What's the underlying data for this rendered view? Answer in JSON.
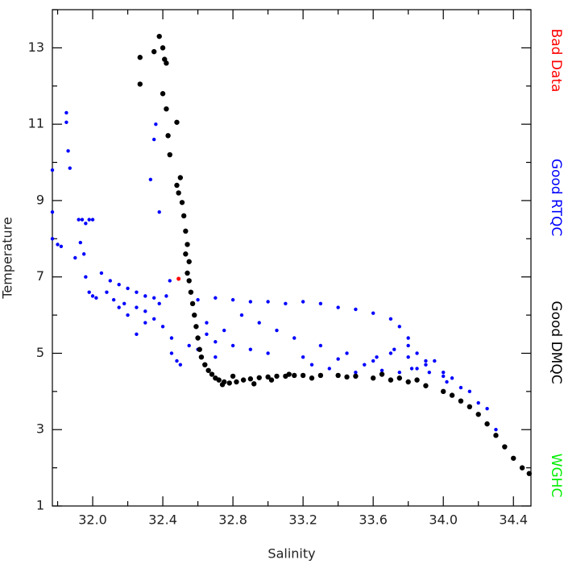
{
  "chart_data": {
    "type": "scatter",
    "x_label": "Salinity",
    "y_label": "Temperature",
    "xlim": [
      31.77,
      34.5
    ],
    "ylim": [
      1,
      14
    ],
    "xticks": [
      {
        "value": 32.0,
        "label": "32.0"
      },
      {
        "value": 32.4,
        "label": "32.4"
      },
      {
        "value": 32.8,
        "label": "32.8"
      },
      {
        "value": 33.2,
        "label": "33.2"
      },
      {
        "value": 33.6,
        "label": "33.6"
      },
      {
        "value": 34.0,
        "label": "34.0"
      },
      {
        "value": 34.4,
        "label": "34.4"
      }
    ],
    "x_minor_ticks": [
      31.8,
      32.2,
      32.6,
      33.0,
      33.4,
      33.8,
      34.2
    ],
    "yticks": [
      1,
      3,
      5,
      7,
      9,
      11,
      13
    ],
    "y_minor_ticks": [
      2,
      4,
      6,
      8,
      10,
      12,
      14
    ],
    "legend": "right",
    "series": [
      {
        "name": "Bad Data",
        "color": "#ff0000",
        "x": [
          32.49
        ],
        "y": [
          6.95
        ]
      },
      {
        "name": "Good RTQC",
        "color": "#0000ff",
        "x": [
          31.77,
          31.77,
          31.77,
          31.8,
          31.82,
          31.85,
          31.85,
          31.86,
          31.87,
          31.9,
          31.92,
          31.94,
          31.96,
          31.98,
          32.0,
          31.93,
          31.95,
          31.96,
          31.98,
          32.0,
          32.02,
          32.05,
          32.1,
          32.15,
          32.2,
          32.25,
          32.3,
          32.35,
          32.08,
          32.12,
          32.18,
          32.25,
          32.3,
          32.35,
          32.4,
          32.45,
          32.45,
          32.48,
          32.5,
          32.35,
          32.36,
          32.33,
          32.38,
          32.44,
          32.38,
          32.42,
          32.6,
          32.7,
          32.8,
          32.9,
          33.0,
          33.1,
          33.2,
          33.3,
          33.4,
          33.5,
          33.6,
          33.7,
          33.75,
          33.8,
          33.85,
          33.9,
          34.0,
          34.1,
          34.2,
          34.3,
          32.7,
          32.8,
          32.9,
          33.0,
          33.2,
          33.4,
          33.6,
          33.7,
          33.8,
          33.9,
          34.0,
          33.85,
          33.75,
          33.65,
          33.5,
          32.65,
          32.75,
          32.85,
          32.95,
          32.7,
          32.6,
          32.55,
          32.3,
          32.2,
          32.25,
          32.15,
          33.3,
          33.45,
          33.55,
          33.8,
          33.95,
          34.05,
          34.15,
          34.25,
          32.65,
          33.05,
          33.15,
          33.25,
          33.35,
          33.62,
          33.72,
          33.82,
          33.92,
          34.02
        ],
        "y": [
          9.8,
          8.7,
          8.0,
          7.85,
          7.8,
          11.3,
          11.05,
          10.3,
          9.85,
          7.5,
          8.5,
          8.5,
          8.4,
          8.5,
          8.5,
          7.9,
          7.6,
          7.0,
          6.6,
          6.5,
          6.45,
          7.1,
          6.9,
          6.8,
          6.7,
          6.6,
          6.5,
          6.45,
          6.6,
          6.4,
          6.3,
          6.2,
          6.1,
          5.9,
          5.7,
          5.4,
          5.0,
          4.8,
          4.7,
          10.6,
          11.0,
          9.55,
          8.7,
          6.9,
          6.3,
          6.5,
          6.4,
          6.45,
          6.4,
          6.35,
          6.35,
          6.3,
          6.35,
          6.3,
          6.2,
          6.15,
          6.05,
          5.9,
          5.7,
          5.4,
          5.0,
          4.8,
          4.5,
          4.1,
          3.7,
          3.0,
          5.3,
          5.2,
          5.1,
          5.0,
          4.9,
          4.85,
          4.8,
          5.0,
          4.9,
          4.7,
          4.4,
          4.6,
          4.5,
          4.55,
          4.5,
          5.8,
          5.6,
          6.0,
          5.8,
          4.9,
          5.1,
          5.2,
          5.8,
          6.0,
          5.5,
          6.2,
          5.2,
          5.0,
          4.7,
          5.2,
          4.8,
          4.35,
          4.0,
          3.55,
          5.5,
          5.6,
          5.4,
          4.7,
          4.6,
          4.9,
          5.1,
          4.6,
          4.5,
          4.25
        ]
      },
      {
        "name": "Good DMQC",
        "color": "#000000",
        "x": [
          32.27,
          32.27,
          32.35,
          32.38,
          32.4,
          32.41,
          32.42,
          32.4,
          32.42,
          32.43,
          32.44,
          32.48,
          32.48,
          32.49,
          32.5,
          32.51,
          32.52,
          32.53,
          32.54,
          32.53,
          32.55,
          32.54,
          32.55,
          32.56,
          32.57,
          32.58,
          32.59,
          32.6,
          32.61,
          32.62,
          32.64,
          32.66,
          32.68,
          32.7,
          32.72,
          32.75,
          32.78,
          32.82,
          32.86,
          32.9,
          32.95,
          33.0,
          33.05,
          33.1,
          33.15,
          33.2,
          33.3,
          33.4,
          33.5,
          33.6,
          33.7,
          33.8,
          33.9,
          34.0,
          34.05,
          34.1,
          34.15,
          34.2,
          34.25,
          34.3,
          34.35,
          34.4,
          34.45,
          34.49,
          32.74,
          32.8,
          32.92,
          33.02,
          33.12,
          33.25,
          33.45,
          33.65,
          33.75,
          33.85
        ],
        "y": [
          12.75,
          12.05,
          12.9,
          13.3,
          13.0,
          12.7,
          12.6,
          11.8,
          11.4,
          10.7,
          10.2,
          11.05,
          9.4,
          9.2,
          9.6,
          8.95,
          8.6,
          8.2,
          7.85,
          7.6,
          7.4,
          7.1,
          6.9,
          6.6,
          6.3,
          6.0,
          5.7,
          5.4,
          5.1,
          4.9,
          4.7,
          4.55,
          4.45,
          4.35,
          4.3,
          4.25,
          4.22,
          4.25,
          4.3,
          4.33,
          4.36,
          4.38,
          4.4,
          4.4,
          4.42,
          4.42,
          4.42,
          4.42,
          4.4,
          4.35,
          4.3,
          4.25,
          4.15,
          4.0,
          3.9,
          3.75,
          3.6,
          3.4,
          3.15,
          2.85,
          2.55,
          2.25,
          2.0,
          1.85,
          4.18,
          4.4,
          4.2,
          4.3,
          4.45,
          4.35,
          4.38,
          4.45,
          4.35,
          4.3
        ]
      },
      {
        "name": "WGHC",
        "color": "#00ee00",
        "x": [],
        "y": []
      }
    ]
  }
}
